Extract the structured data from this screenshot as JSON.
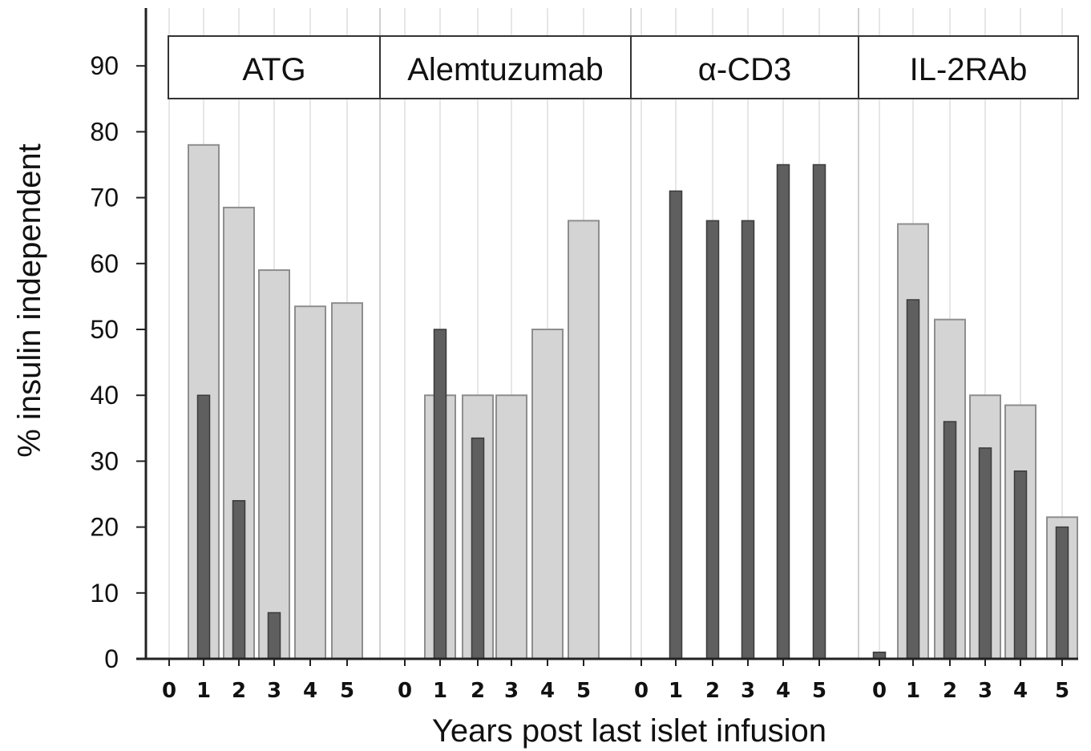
{
  "chart_data": {
    "type": "bar",
    "ylabel": "% insulin independent",
    "xlabel": "Years post last islet infusion",
    "ylim": [
      0,
      97
    ],
    "yticks": [
      0,
      10,
      20,
      30,
      40,
      50,
      60,
      70,
      80,
      90
    ],
    "grid": "vertical",
    "x_categories": [
      "0",
      "1",
      "2",
      "3",
      "4",
      "5"
    ],
    "panels": [
      {
        "label": "ATG",
        "light_series": [
          null,
          78,
          68.5,
          59,
          53.5,
          54
        ],
        "dark_series": [
          null,
          40,
          24,
          7,
          null,
          null
        ]
      },
      {
        "label": "Alemtuzumab",
        "light_series": [
          null,
          40,
          40,
          40,
          50,
          66.5
        ],
        "dark_series": [
          null,
          50,
          33.5,
          null,
          null,
          null
        ]
      },
      {
        "label": "α-CD3",
        "light_series": [
          null,
          null,
          null,
          null,
          null,
          null
        ],
        "dark_series": [
          null,
          71,
          66.5,
          66.5,
          75,
          75
        ]
      },
      {
        "label": "IL-2RAb",
        "light_series": [
          null,
          66,
          51.5,
          40,
          38.5,
          21.5
        ],
        "dark_series": [
          1,
          54.5,
          36,
          32,
          28.5,
          20
        ]
      }
    ],
    "colors": {
      "light_bar": "#d4d4d4",
      "light_bar_edge": "#8e8e8e",
      "dark_bar": "#5f5f5f",
      "dark_bar_edge": "#3a3a3a",
      "grid": "#e6e6e6",
      "axis": "#222222"
    }
  }
}
